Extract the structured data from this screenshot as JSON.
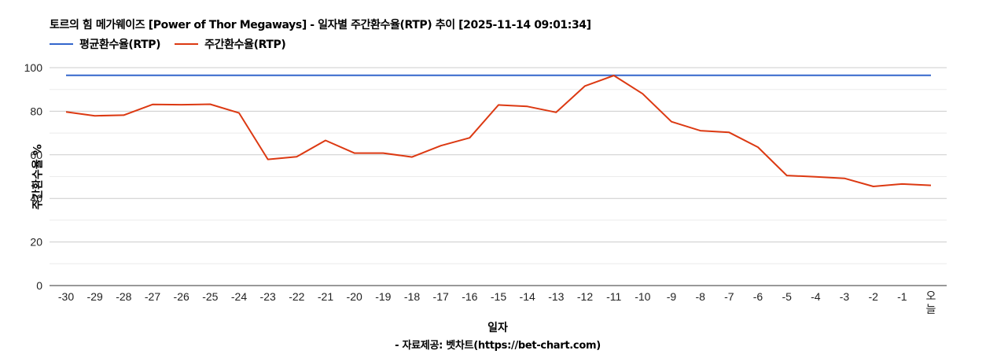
{
  "chart_data": {
    "type": "line",
    "title": "토르의 힘 메가웨이즈 [Power of Thor Megaways] - 일자별 주간환수율(RTP) 추이 [2025-11-14 09:01:34]",
    "xlabel": "일자",
    "ylabel": "주간환수율 %",
    "ylim": [
      0,
      100
    ],
    "yticks": [
      0,
      20,
      40,
      60,
      80,
      100
    ],
    "grid": true,
    "legend_position": "top-left",
    "categories": [
      "-30",
      "-29",
      "-28",
      "-27",
      "-26",
      "-25",
      "-24",
      "-23",
      "-22",
      "-21",
      "-20",
      "-19",
      "-18",
      "-17",
      "-16",
      "-15",
      "-14",
      "-13",
      "-12",
      "-11",
      "-10",
      "-9",
      "-8",
      "-7",
      "-6",
      "-5",
      "-4",
      "-3",
      "-2",
      "-1",
      "오늘"
    ],
    "series": [
      {
        "name": "평균환수율(RTP)",
        "color": "#3366cc",
        "values": [
          96.5,
          96.5,
          96.5,
          96.5,
          96.5,
          96.5,
          96.5,
          96.5,
          96.5,
          96.5,
          96.5,
          96.5,
          96.5,
          96.5,
          96.5,
          96.5,
          96.5,
          96.5,
          96.5,
          96.5,
          96.5,
          96.5,
          96.5,
          96.5,
          96.5,
          96.5,
          96.5,
          96.5,
          96.5,
          96.5,
          96.5
        ]
      },
      {
        "name": "주간환수율(RTP)",
        "color": "#dc3912",
        "values": [
          79.7,
          77.9,
          78.2,
          83.1,
          83.0,
          83.2,
          79.2,
          57.9,
          59.1,
          66.6,
          60.8,
          60.8,
          59.0,
          64.2,
          67.8,
          82.9,
          82.2,
          79.5,
          91.6,
          96.4,
          88.0,
          75.2,
          71.1,
          70.3,
          63.5,
          50.5,
          49.9,
          49.2,
          45.5,
          46.6,
          46.0
        ]
      }
    ]
  },
  "footer": {
    "credit": "- 자료제공: 벳차트(https://bet-chart.com)"
  }
}
